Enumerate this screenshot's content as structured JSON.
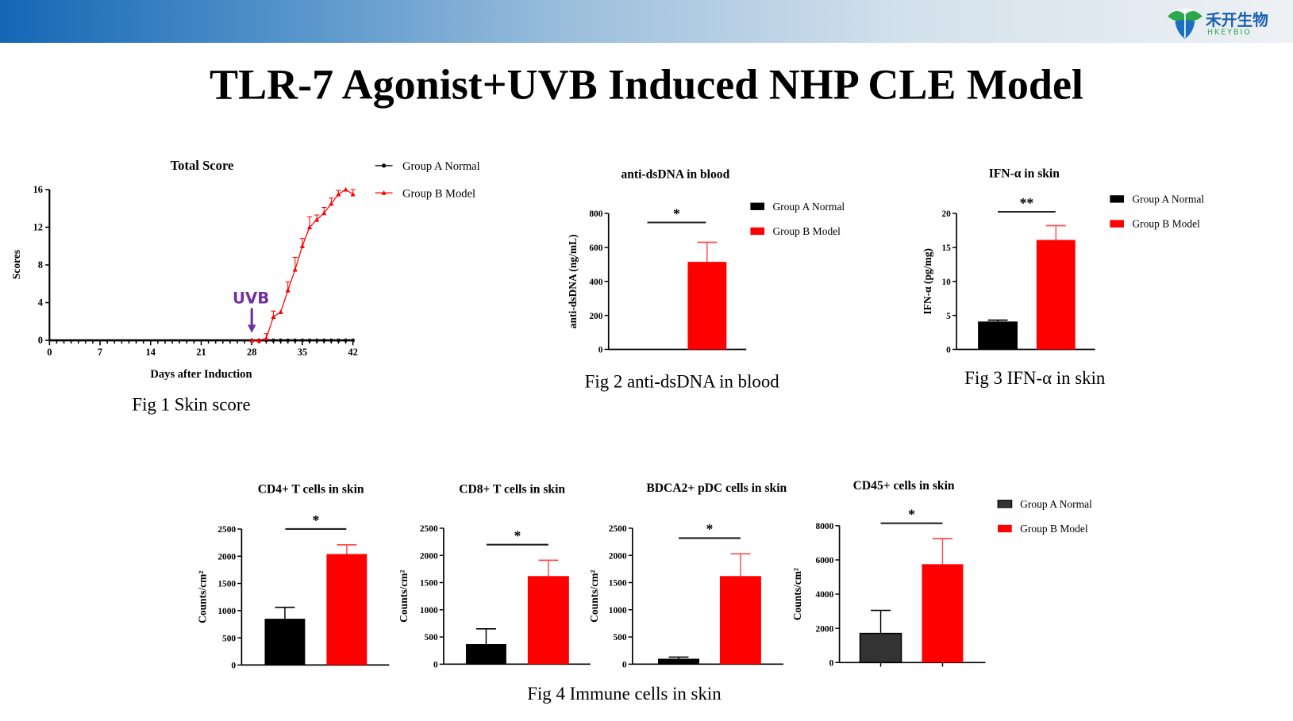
{
  "slide": {
    "title": "TLR-7 Agonist+UVB Induced NHP CLE Model",
    "logo": {
      "text_cn": "禾开生物",
      "text_en": "HKEYBIO",
      "colors": {
        "leaf_green": "#2ba84a",
        "leaf_blue": "#1a6fc0"
      }
    },
    "header_colors": [
      "#1467b4",
      "#eef1f4"
    ],
    "captions": [
      "Fig 1 Skin score",
      "Fig 2 anti-dsDNA in blood",
      "Fig 3 IFN-α in skin",
      "Fig 4 Immune cells in skin"
    ]
  },
  "chart_data": [
    {
      "type": "line",
      "title": "Total Score",
      "xlabel": "Days after Induction",
      "ylabel": "Scores",
      "xlim": [
        0,
        42
      ],
      "ylim": [
        0,
        16
      ],
      "xticks": [
        0,
        7,
        14,
        21,
        28,
        35,
        42
      ],
      "yticks": [
        0,
        4,
        8,
        12,
        16
      ],
      "annotation": {
        "text": "UVB",
        "x": 28,
        "color": "#7030a0"
      },
      "legend": "top-right",
      "series": [
        {
          "name": "Group A Normal",
          "color": "#000000",
          "marker": "circle",
          "x": [
            28,
            29,
            30,
            31,
            32,
            33,
            34,
            35,
            36,
            37,
            38,
            39,
            40,
            41,
            42
          ],
          "y": [
            0,
            0,
            0,
            0,
            0,
            0,
            0,
            0,
            0,
            0,
            0,
            0,
            0,
            0,
            0
          ]
        },
        {
          "name": "Group B Model",
          "color": "#ff0000",
          "marker": "triangle",
          "x": [
            28,
            29,
            30,
            31,
            32,
            33,
            34,
            35,
            36,
            37,
            38,
            39,
            40,
            41,
            42
          ],
          "y": [
            0,
            0,
            0.2,
            2.5,
            3.0,
            5.3,
            7.5,
            10.0,
            12.0,
            12.8,
            13.5,
            14.5,
            15.5,
            16.0,
            15.5
          ],
          "error": [
            0,
            0,
            0.5,
            0.6,
            0,
            0.9,
            1.3,
            0.8,
            1.1,
            0.5,
            0.6,
            0.6,
            0.4,
            0,
            0.5
          ]
        }
      ]
    },
    {
      "type": "bar",
      "title": "anti-dsDNA in blood",
      "ylabel": "anti-dsDNA (ng/mL)",
      "ylim": [
        0,
        800
      ],
      "yticks": [
        0,
        200,
        400,
        600,
        800
      ],
      "categories": [
        "Group A Normal",
        "Group B Model"
      ],
      "values": [
        null,
        515
      ],
      "errors": [
        null,
        115
      ],
      "colors": [
        "#000000",
        "#ff0000"
      ],
      "significance": "*",
      "legend": "right"
    },
    {
      "type": "bar",
      "title": "IFN-α in skin",
      "ylabel": "IFN-α (pg/mg)",
      "ylim": [
        0,
        20
      ],
      "yticks": [
        0,
        5,
        10,
        15,
        20
      ],
      "categories": [
        "Group A Normal",
        "Group B Model"
      ],
      "values": [
        4.1,
        16.1
      ],
      "errors": [
        0.2,
        2.1
      ],
      "colors": [
        "#000000",
        "#ff0000"
      ],
      "significance": "**",
      "legend": "right"
    },
    {
      "type": "bar",
      "title": "CD4+ T cells in skin",
      "ylabel": "Counts/cm²",
      "ylim": [
        0,
        2500
      ],
      "yticks": [
        0,
        500,
        1000,
        1500,
        2000,
        2500
      ],
      "categories": [
        "Group A Normal",
        "Group B Model"
      ],
      "values": [
        850,
        2040
      ],
      "errors": [
        210,
        170
      ],
      "colors": [
        "#000000",
        "#ff0000"
      ],
      "significance": "*"
    },
    {
      "type": "bar",
      "title": "CD8+ T cells in skin",
      "ylabel": "Counts/cm²",
      "ylim": [
        0,
        2500
      ],
      "yticks": [
        0,
        500,
        1000,
        1500,
        2000,
        2500
      ],
      "categories": [
        "Group A Normal",
        "Group B Model"
      ],
      "values": [
        370,
        1620
      ],
      "errors": [
        280,
        290
      ],
      "colors": [
        "#000000",
        "#ff0000"
      ],
      "significance": "*"
    },
    {
      "type": "bar",
      "title": "BDCA2+ pDC cells in skin",
      "ylabel": "Counts/cm²",
      "ylim": [
        0,
        2500
      ],
      "yticks": [
        0,
        500,
        1000,
        1500,
        2000,
        2500
      ],
      "categories": [
        "Group A Normal",
        "Group B Model"
      ],
      "values": [
        100,
        1620
      ],
      "errors": [
        30,
        410
      ],
      "colors": [
        "#000000",
        "#ff0000"
      ],
      "significance": "*"
    },
    {
      "type": "bar",
      "title": "CD45+ cells in skin",
      "ylabel": "Counts/cm²",
      "ylim": [
        0,
        8000
      ],
      "yticks": [
        0,
        2000,
        4000,
        6000,
        8000
      ],
      "categories": [
        "Group A Normal",
        "Group B Model"
      ],
      "values": [
        1700,
        5750
      ],
      "errors": [
        1350,
        1500
      ],
      "colors": [
        "#333333",
        "#ff0000"
      ],
      "significance": "*",
      "legend": "right"
    }
  ]
}
